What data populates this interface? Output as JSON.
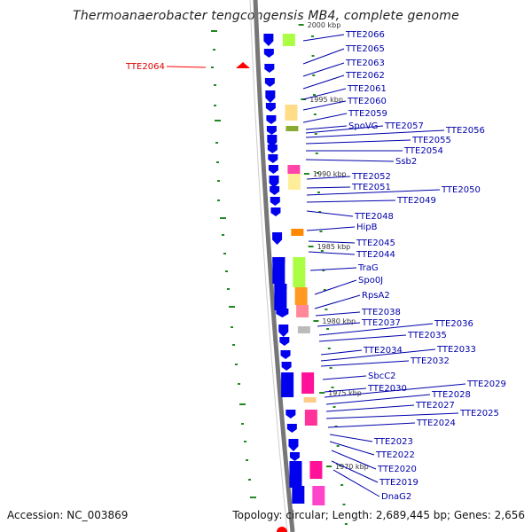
{
  "title": "Thermoanaerobacter tengcongensis MB4, complete genome",
  "accession": "Accession: NC_003869",
  "topology": "Topology: circular; Length: 2,689,445 bp; Genes: 2,656",
  "colors": {
    "forward_gene": "#0000ee",
    "reverse_gene": "#0000ee",
    "highlight": "#ff0000",
    "label": "#0000aa",
    "gc_skew": "#228822",
    "backbone": "#888888"
  },
  "kbp_markers": [
    "2000 kbp",
    "1995 kbp",
    "1990 kbp",
    "1985 kbp",
    "1980 kbp",
    "1975 kbp",
    "1970 kbp"
  ],
  "genes": [
    {
      "name": "TTE2066"
    },
    {
      "name": "TTE2065"
    },
    {
      "name": "TTE2064",
      "highlight": true
    },
    {
      "name": "TTE2063"
    },
    {
      "name": "TTE2062"
    },
    {
      "name": "TTE2061"
    },
    {
      "name": "TTE2060"
    },
    {
      "name": "TTE2059"
    },
    {
      "name": "SpoVG"
    },
    {
      "name": "TTE2057"
    },
    {
      "name": "TTE2056"
    },
    {
      "name": "TTE2055"
    },
    {
      "name": "TTE2054"
    },
    {
      "name": "Ssb2"
    },
    {
      "name": "TTE2052"
    },
    {
      "name": "TTE2051"
    },
    {
      "name": "TTE2050"
    },
    {
      "name": "TTE2049"
    },
    {
      "name": "TTE2048"
    },
    {
      "name": "HipB"
    },
    {
      "name": "TTE2045"
    },
    {
      "name": "TTE2044"
    },
    {
      "name": "TraG"
    },
    {
      "name": "Spo0J"
    },
    {
      "name": "RpsA2"
    },
    {
      "name": "TTE2038"
    },
    {
      "name": "TTE2037"
    },
    {
      "name": "TTE2036"
    },
    {
      "name": "TTE2035"
    },
    {
      "name": "TTE2034"
    },
    {
      "name": "TTE2033"
    },
    {
      "name": "TTE2032"
    },
    {
      "name": "SbcC2"
    },
    {
      "name": "TTE2030"
    },
    {
      "name": "TTE2029"
    },
    {
      "name": "TTE2028"
    },
    {
      "name": "TTE2027"
    },
    {
      "name": "TTE2025"
    },
    {
      "name": "TTE2024"
    },
    {
      "name": "TTE2023"
    },
    {
      "name": "TTE2022"
    },
    {
      "name": "TTE2020"
    },
    {
      "name": "TTE2019"
    },
    {
      "name": "DnaG2"
    }
  ]
}
